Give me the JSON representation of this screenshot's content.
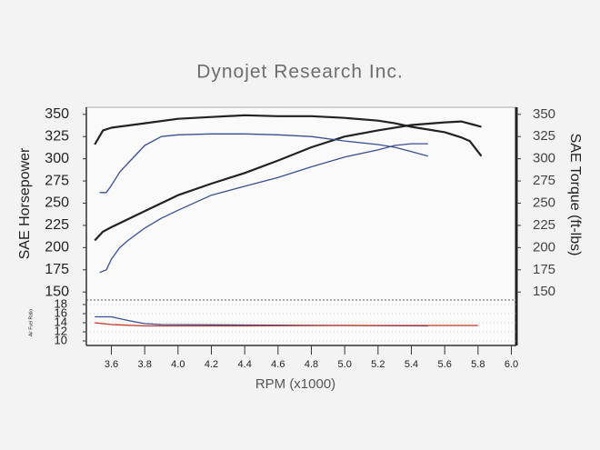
{
  "chart_data": [
    {
      "type": "line",
      "title": "Dynojet Research Inc.",
      "ylabel": "SAE Horsepower",
      "y2label": "SAE Torque (ft-lbs)",
      "xlim": [
        3.45,
        6.03
      ],
      "ylim": [
        141,
        358
      ],
      "y2lim": [
        141,
        358
      ],
      "yticks": [
        150,
        175,
        200,
        225,
        250,
        275,
        300,
        325,
        350
      ],
      "y2ticks": [
        150,
        175,
        200,
        225,
        250,
        275,
        300,
        325,
        350
      ],
      "series": [
        {
          "color": "#222222",
          "x": [
            3.5,
            3.55,
            3.6,
            3.8,
            4.0,
            4.2,
            4.4,
            4.6,
            4.8,
            5.0,
            5.2,
            5.3,
            5.4,
            5.6,
            5.7,
            5.75,
            5.82
          ],
          "values": [
            316,
            332,
            335,
            340,
            345,
            347,
            349,
            348,
            348,
            346,
            343,
            340,
            336,
            330,
            324,
            320,
            303
          ]
        },
        {
          "color": "#222222",
          "axis": "y2",
          "x": [
            3.5,
            3.55,
            3.6,
            3.8,
            4.0,
            4.2,
            4.4,
            4.6,
            4.8,
            5.0,
            5.2,
            5.4,
            5.6,
            5.7,
            5.78,
            5.82
          ],
          "values": [
            208,
            218,
            223,
            241,
            259,
            272,
            284,
            298,
            313,
            325,
            332,
            338,
            341,
            342,
            338,
            336
          ]
        },
        {
          "color": "#3b4f8f",
          "x": [
            3.53,
            3.57,
            3.6,
            3.65,
            3.7,
            3.8,
            3.9,
            4.0,
            4.2,
            4.4,
            4.6,
            4.8,
            5.0,
            5.2,
            5.3,
            5.4,
            5.5
          ],
          "values": [
            262,
            262,
            270,
            285,
            295,
            315,
            325,
            327,
            328,
            328,
            327,
            325,
            320,
            316,
            313,
            308,
            303
          ]
        },
        {
          "color": "#3b4f8f",
          "axis": "y2",
          "x": [
            3.53,
            3.57,
            3.6,
            3.65,
            3.7,
            3.8,
            3.9,
            4.0,
            4.2,
            4.4,
            4.6,
            4.8,
            5.0,
            5.2,
            5.3,
            5.4,
            5.5
          ],
          "values": [
            172,
            175,
            187,
            200,
            208,
            222,
            233,
            242,
            259,
            269,
            279,
            291,
            302,
            310,
            315,
            317,
            317
          ]
        }
      ]
    },
    {
      "type": "line",
      "ylabel": "Air Fuel Ratio",
      "xlabel": "RPM (x1000)",
      "xlim": [
        3.45,
        6.03
      ],
      "ylim": [
        9,
        19
      ],
      "yticks": [
        10,
        12,
        14,
        16,
        18
      ],
      "xticks": [
        3.6,
        3.8,
        {
          "value": 4,
          "label": "4.0"
        },
        4.2,
        4.4,
        4.6,
        4.8,
        {
          "value": 5,
          "label": "5.0"
        },
        5.2,
        5.4,
        5.6,
        5.8,
        {
          "value": 6,
          "label": "6.0"
        }
      ],
      "series": [
        {
          "color": "#3b4f8f",
          "x": [
            3.5,
            3.6,
            3.7,
            3.8,
            3.9,
            4.4,
            5.0,
            5.5
          ],
          "values": [
            15.3,
            15.3,
            14.5,
            13.8,
            13.6,
            13.5,
            13.4,
            13.3
          ]
        },
        {
          "color": "#c0392b",
          "x": [
            3.5,
            3.6,
            3.8,
            4.4,
            5.0,
            5.8
          ],
          "values": [
            14.0,
            13.6,
            13.3,
            13.3,
            13.4,
            13.4
          ]
        }
      ]
    }
  ]
}
